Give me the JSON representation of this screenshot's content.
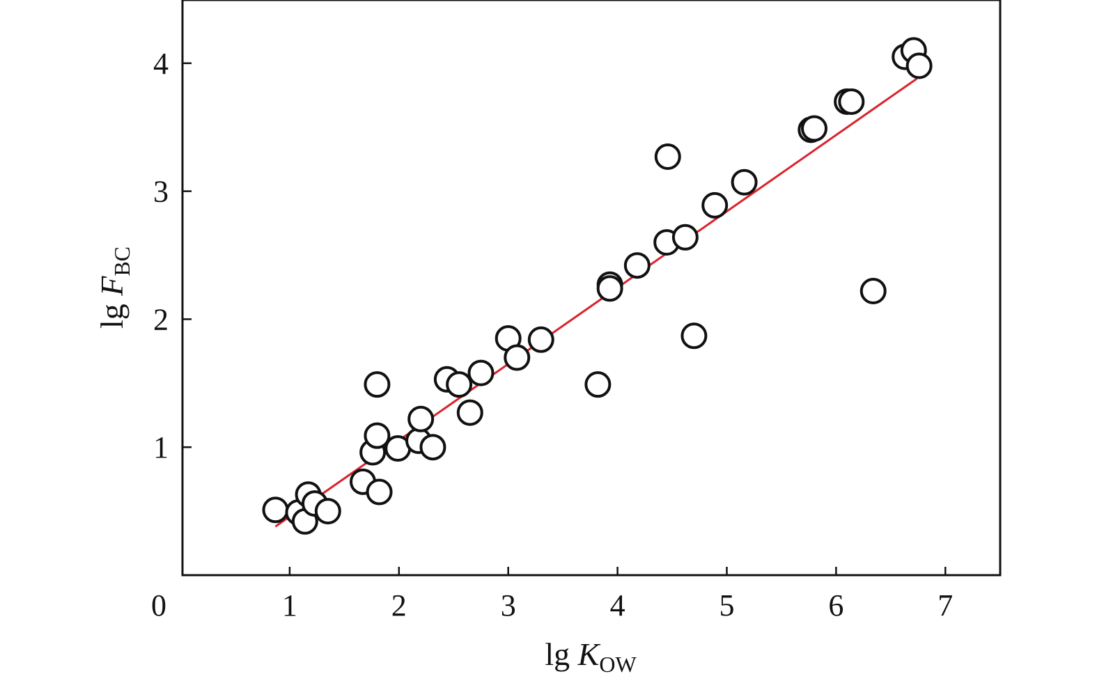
{
  "chart_data": {
    "type": "scatter",
    "title": "",
    "xlabel": {
      "main": "lg ",
      "italic": "K",
      "sub": "OW"
    },
    "ylabel": {
      "main": "lg ",
      "italic": "F",
      "sub": "BC"
    },
    "xlim": [
      0,
      7.5
    ],
    "ylim": [
      0,
      4.5
    ],
    "x_ticks": [
      0,
      1,
      2,
      3,
      4,
      5,
      6,
      7
    ],
    "x_tick_labels": [
      "0",
      "1",
      "2",
      "3",
      "4",
      "5",
      "6",
      "7"
    ],
    "y_ticks": [
      1,
      2,
      3,
      4
    ],
    "y_tick_labels": [
      "1",
      "2",
      "3",
      "4"
    ],
    "grid": false,
    "legend": "none",
    "colors": {
      "fit_line": "#d9232e",
      "marker_edge": "#111111",
      "marker_fill": "#ffffff"
    },
    "points": [
      {
        "x": 0.87,
        "y": 0.51
      },
      {
        "x": 1.08,
        "y": 0.49
      },
      {
        "x": 1.14,
        "y": 0.42
      },
      {
        "x": 1.17,
        "y": 0.63
      },
      {
        "x": 1.23,
        "y": 0.56
      },
      {
        "x": 1.35,
        "y": 0.5
      },
      {
        "x": 1.67,
        "y": 0.73
      },
      {
        "x": 1.76,
        "y": 0.96
      },
      {
        "x": 1.8,
        "y": 1.09
      },
      {
        "x": 1.82,
        "y": 0.65
      },
      {
        "x": 1.8,
        "y": 1.49
      },
      {
        "x": 1.99,
        "y": 0.99
      },
      {
        "x": 2.18,
        "y": 1.05
      },
      {
        "x": 2.2,
        "y": 1.22
      },
      {
        "x": 2.31,
        "y": 1.0
      },
      {
        "x": 2.44,
        "y": 1.53
      },
      {
        "x": 2.55,
        "y": 1.49
      },
      {
        "x": 2.65,
        "y": 1.27
      },
      {
        "x": 2.75,
        "y": 1.58
      },
      {
        "x": 3.0,
        "y": 1.85
      },
      {
        "x": 3.08,
        "y": 1.7
      },
      {
        "x": 3.3,
        "y": 1.84
      },
      {
        "x": 3.82,
        "y": 1.49
      },
      {
        "x": 3.93,
        "y": 2.27
      },
      {
        "x": 3.93,
        "y": 2.24
      },
      {
        "x": 4.18,
        "y": 2.42
      },
      {
        "x": 4.45,
        "y": 2.6
      },
      {
        "x": 4.46,
        "y": 3.27
      },
      {
        "x": 4.62,
        "y": 2.64
      },
      {
        "x": 4.7,
        "y": 1.87
      },
      {
        "x": 4.89,
        "y": 2.89
      },
      {
        "x": 5.16,
        "y": 3.07
      },
      {
        "x": 5.77,
        "y": 3.48
      },
      {
        "x": 5.8,
        "y": 3.49
      },
      {
        "x": 6.1,
        "y": 3.7
      },
      {
        "x": 6.14,
        "y": 3.7
      },
      {
        "x": 6.34,
        "y": 2.22
      },
      {
        "x": 6.63,
        "y": 4.05
      },
      {
        "x": 6.71,
        "y": 4.1
      },
      {
        "x": 6.76,
        "y": 3.98
      }
    ],
    "fit_line": {
      "x": [
        0.87,
        6.74
      ],
      "y": [
        0.38,
        3.88
      ]
    }
  }
}
